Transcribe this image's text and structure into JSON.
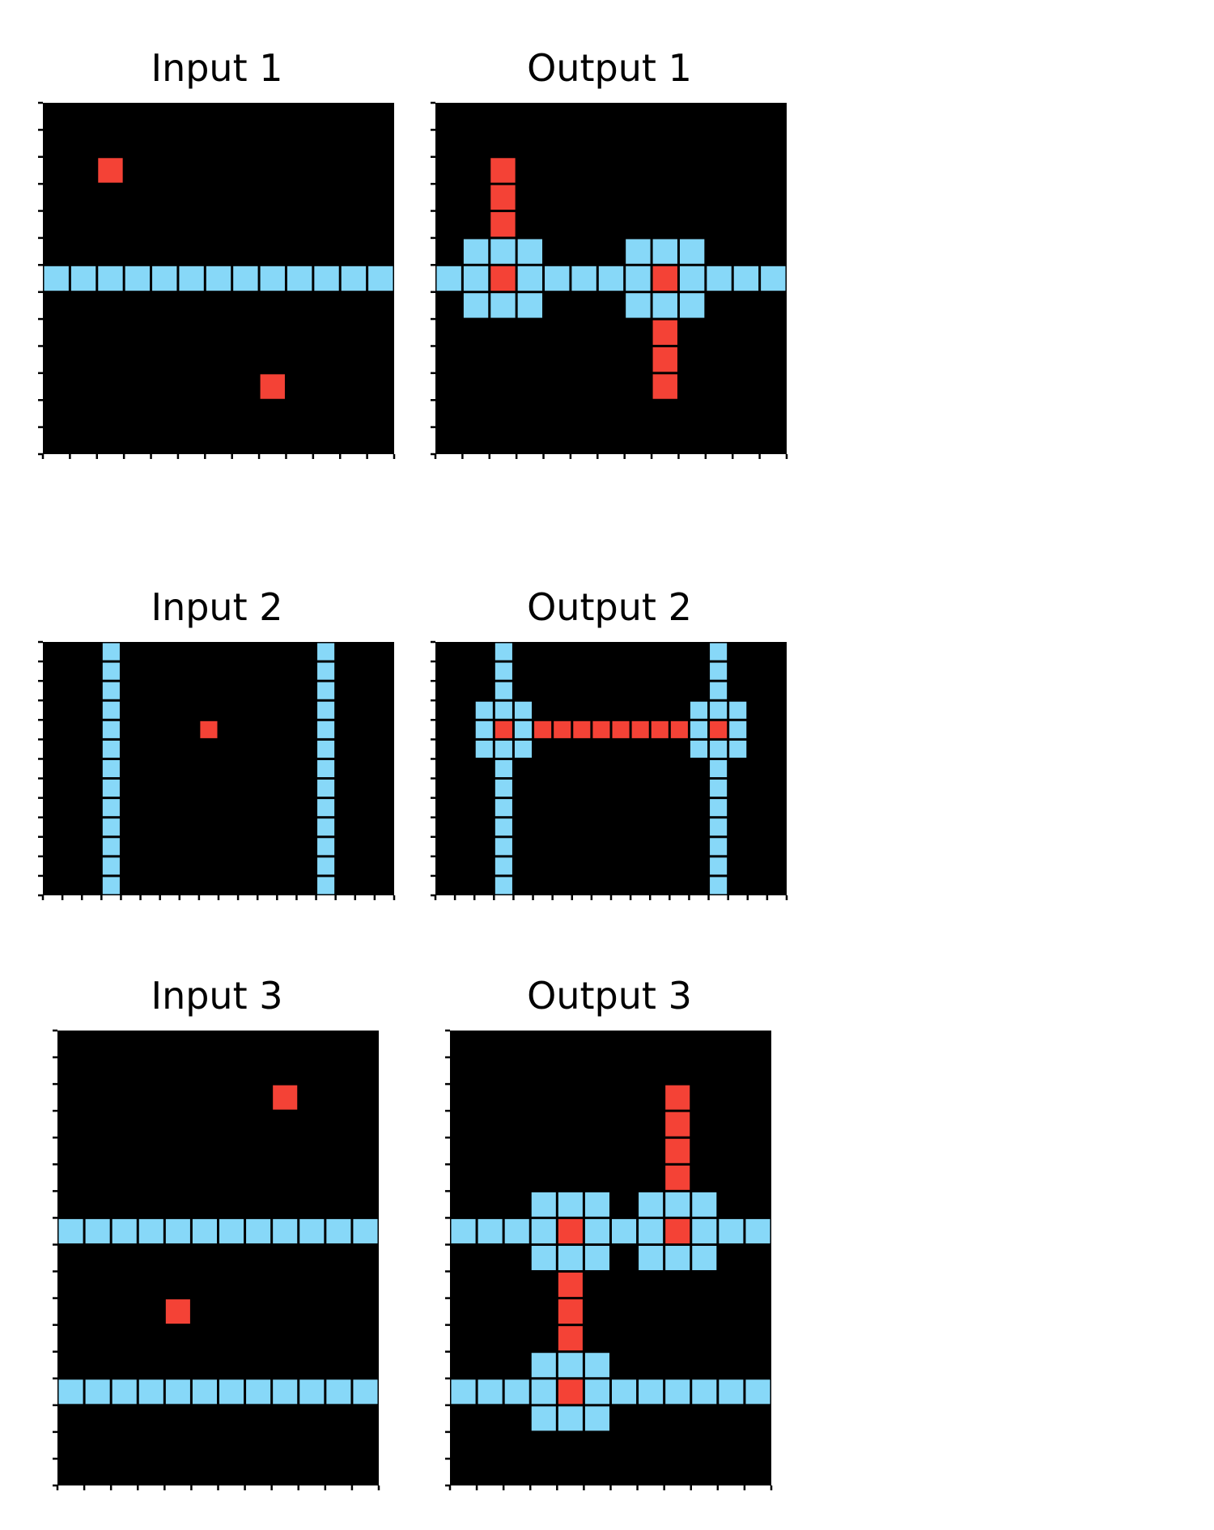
{
  "colors": {
    "background": "#000000",
    "cyan": "#87d8f8",
    "red": "#f44236",
    "grid_line": "#000000"
  },
  "panels": [
    {
      "title": "Input 1",
      "rows": 13,
      "cols": 13,
      "cells": [
        {
          "r": 2,
          "c": 2,
          "color": "red"
        },
        {
          "r": 6,
          "c": 0,
          "color": "cyan"
        },
        {
          "r": 6,
          "c": 1,
          "color": "cyan"
        },
        {
          "r": 6,
          "c": 2,
          "color": "cyan"
        },
        {
          "r": 6,
          "c": 3,
          "color": "cyan"
        },
        {
          "r": 6,
          "c": 4,
          "color": "cyan"
        },
        {
          "r": 6,
          "c": 5,
          "color": "cyan"
        },
        {
          "r": 6,
          "c": 6,
          "color": "cyan"
        },
        {
          "r": 6,
          "c": 7,
          "color": "cyan"
        },
        {
          "r": 6,
          "c": 8,
          "color": "cyan"
        },
        {
          "r": 6,
          "c": 9,
          "color": "cyan"
        },
        {
          "r": 6,
          "c": 10,
          "color": "cyan"
        },
        {
          "r": 6,
          "c": 11,
          "color": "cyan"
        },
        {
          "r": 6,
          "c": 12,
          "color": "cyan"
        },
        {
          "r": 10,
          "c": 8,
          "color": "red"
        }
      ]
    },
    {
      "title": "Output 1",
      "rows": 13,
      "cols": 13,
      "cells": [
        {
          "r": 2,
          "c": 2,
          "color": "red"
        },
        {
          "r": 3,
          "c": 2,
          "color": "red"
        },
        {
          "r": 4,
          "c": 2,
          "color": "red"
        },
        {
          "r": 5,
          "c": 1,
          "color": "cyan"
        },
        {
          "r": 5,
          "c": 2,
          "color": "cyan"
        },
        {
          "r": 5,
          "c": 3,
          "color": "cyan"
        },
        {
          "r": 5,
          "c": 7,
          "color": "cyan"
        },
        {
          "r": 5,
          "c": 8,
          "color": "cyan"
        },
        {
          "r": 5,
          "c": 9,
          "color": "cyan"
        },
        {
          "r": 6,
          "c": 0,
          "color": "cyan"
        },
        {
          "r": 6,
          "c": 1,
          "color": "cyan"
        },
        {
          "r": 6,
          "c": 2,
          "color": "red"
        },
        {
          "r": 6,
          "c": 3,
          "color": "cyan"
        },
        {
          "r": 6,
          "c": 4,
          "color": "cyan"
        },
        {
          "r": 6,
          "c": 5,
          "color": "cyan"
        },
        {
          "r": 6,
          "c": 6,
          "color": "cyan"
        },
        {
          "r": 6,
          "c": 7,
          "color": "cyan"
        },
        {
          "r": 6,
          "c": 8,
          "color": "red"
        },
        {
          "r": 6,
          "c": 9,
          "color": "cyan"
        },
        {
          "r": 6,
          "c": 10,
          "color": "cyan"
        },
        {
          "r": 6,
          "c": 11,
          "color": "cyan"
        },
        {
          "r": 6,
          "c": 12,
          "color": "cyan"
        },
        {
          "r": 7,
          "c": 1,
          "color": "cyan"
        },
        {
          "r": 7,
          "c": 2,
          "color": "cyan"
        },
        {
          "r": 7,
          "c": 3,
          "color": "cyan"
        },
        {
          "r": 7,
          "c": 7,
          "color": "cyan"
        },
        {
          "r": 7,
          "c": 8,
          "color": "cyan"
        },
        {
          "r": 7,
          "c": 9,
          "color": "cyan"
        },
        {
          "r": 8,
          "c": 8,
          "color": "red"
        },
        {
          "r": 9,
          "c": 8,
          "color": "red"
        },
        {
          "r": 10,
          "c": 8,
          "color": "red"
        }
      ]
    },
    {
      "title": "Input 2",
      "rows": 13,
      "cols": 18,
      "cells": [
        {
          "r": 0,
          "c": 3,
          "color": "cyan"
        },
        {
          "r": 1,
          "c": 3,
          "color": "cyan"
        },
        {
          "r": 2,
          "c": 3,
          "color": "cyan"
        },
        {
          "r": 3,
          "c": 3,
          "color": "cyan"
        },
        {
          "r": 4,
          "c": 3,
          "color": "cyan"
        },
        {
          "r": 5,
          "c": 3,
          "color": "cyan"
        },
        {
          "r": 6,
          "c": 3,
          "color": "cyan"
        },
        {
          "r": 7,
          "c": 3,
          "color": "cyan"
        },
        {
          "r": 8,
          "c": 3,
          "color": "cyan"
        },
        {
          "r": 9,
          "c": 3,
          "color": "cyan"
        },
        {
          "r": 10,
          "c": 3,
          "color": "cyan"
        },
        {
          "r": 11,
          "c": 3,
          "color": "cyan"
        },
        {
          "r": 12,
          "c": 3,
          "color": "cyan"
        },
        {
          "r": 0,
          "c": 14,
          "color": "cyan"
        },
        {
          "r": 1,
          "c": 14,
          "color": "cyan"
        },
        {
          "r": 2,
          "c": 14,
          "color": "cyan"
        },
        {
          "r": 3,
          "c": 14,
          "color": "cyan"
        },
        {
          "r": 4,
          "c": 14,
          "color": "cyan"
        },
        {
          "r": 5,
          "c": 14,
          "color": "cyan"
        },
        {
          "r": 6,
          "c": 14,
          "color": "cyan"
        },
        {
          "r": 7,
          "c": 14,
          "color": "cyan"
        },
        {
          "r": 8,
          "c": 14,
          "color": "cyan"
        },
        {
          "r": 9,
          "c": 14,
          "color": "cyan"
        },
        {
          "r": 10,
          "c": 14,
          "color": "cyan"
        },
        {
          "r": 11,
          "c": 14,
          "color": "cyan"
        },
        {
          "r": 12,
          "c": 14,
          "color": "cyan"
        },
        {
          "r": 4,
          "c": 8,
          "color": "red"
        }
      ]
    },
    {
      "title": "Output 2",
      "rows": 13,
      "cols": 18,
      "cells": [
        {
          "r": 0,
          "c": 3,
          "color": "cyan"
        },
        {
          "r": 1,
          "c": 3,
          "color": "cyan"
        },
        {
          "r": 2,
          "c": 3,
          "color": "cyan"
        },
        {
          "r": 3,
          "c": 2,
          "color": "cyan"
        },
        {
          "r": 3,
          "c": 3,
          "color": "cyan"
        },
        {
          "r": 3,
          "c": 4,
          "color": "cyan"
        },
        {
          "r": 4,
          "c": 2,
          "color": "cyan"
        },
        {
          "r": 4,
          "c": 3,
          "color": "red"
        },
        {
          "r": 4,
          "c": 4,
          "color": "cyan"
        },
        {
          "r": 5,
          "c": 2,
          "color": "cyan"
        },
        {
          "r": 5,
          "c": 3,
          "color": "cyan"
        },
        {
          "r": 5,
          "c": 4,
          "color": "cyan"
        },
        {
          "r": 6,
          "c": 3,
          "color": "cyan"
        },
        {
          "r": 7,
          "c": 3,
          "color": "cyan"
        },
        {
          "r": 8,
          "c": 3,
          "color": "cyan"
        },
        {
          "r": 9,
          "c": 3,
          "color": "cyan"
        },
        {
          "r": 10,
          "c": 3,
          "color": "cyan"
        },
        {
          "r": 11,
          "c": 3,
          "color": "cyan"
        },
        {
          "r": 12,
          "c": 3,
          "color": "cyan"
        },
        {
          "r": 4,
          "c": 5,
          "color": "red"
        },
        {
          "r": 4,
          "c": 6,
          "color": "red"
        },
        {
          "r": 4,
          "c": 7,
          "color": "red"
        },
        {
          "r": 4,
          "c": 8,
          "color": "red"
        },
        {
          "r": 4,
          "c": 9,
          "color": "red"
        },
        {
          "r": 4,
          "c": 10,
          "color": "red"
        },
        {
          "r": 4,
          "c": 11,
          "color": "red"
        },
        {
          "r": 4,
          "c": 12,
          "color": "red"
        },
        {
          "r": 0,
          "c": 14,
          "color": "cyan"
        },
        {
          "r": 1,
          "c": 14,
          "color": "cyan"
        },
        {
          "r": 2,
          "c": 14,
          "color": "cyan"
        },
        {
          "r": 3,
          "c": 13,
          "color": "cyan"
        },
        {
          "r": 3,
          "c": 14,
          "color": "cyan"
        },
        {
          "r": 3,
          "c": 15,
          "color": "cyan"
        },
        {
          "r": 4,
          "c": 13,
          "color": "cyan"
        },
        {
          "r": 4,
          "c": 14,
          "color": "red"
        },
        {
          "r": 4,
          "c": 15,
          "color": "cyan"
        },
        {
          "r": 5,
          "c": 13,
          "color": "cyan"
        },
        {
          "r": 5,
          "c": 14,
          "color": "cyan"
        },
        {
          "r": 5,
          "c": 15,
          "color": "cyan"
        },
        {
          "r": 6,
          "c": 14,
          "color": "cyan"
        },
        {
          "r": 7,
          "c": 14,
          "color": "cyan"
        },
        {
          "r": 8,
          "c": 14,
          "color": "cyan"
        },
        {
          "r": 9,
          "c": 14,
          "color": "cyan"
        },
        {
          "r": 10,
          "c": 14,
          "color": "cyan"
        },
        {
          "r": 11,
          "c": 14,
          "color": "cyan"
        },
        {
          "r": 12,
          "c": 14,
          "color": "cyan"
        }
      ]
    },
    {
      "title": "Input 3",
      "rows": 17,
      "cols": 12,
      "cells": [
        {
          "r": 2,
          "c": 8,
          "color": "red"
        },
        {
          "r": 7,
          "c": 0,
          "color": "cyan"
        },
        {
          "r": 7,
          "c": 1,
          "color": "cyan"
        },
        {
          "r": 7,
          "c": 2,
          "color": "cyan"
        },
        {
          "r": 7,
          "c": 3,
          "color": "cyan"
        },
        {
          "r": 7,
          "c": 4,
          "color": "cyan"
        },
        {
          "r": 7,
          "c": 5,
          "color": "cyan"
        },
        {
          "r": 7,
          "c": 6,
          "color": "cyan"
        },
        {
          "r": 7,
          "c": 7,
          "color": "cyan"
        },
        {
          "r": 7,
          "c": 8,
          "color": "cyan"
        },
        {
          "r": 7,
          "c": 9,
          "color": "cyan"
        },
        {
          "r": 7,
          "c": 10,
          "color": "cyan"
        },
        {
          "r": 7,
          "c": 11,
          "color": "cyan"
        },
        {
          "r": 10,
          "c": 4,
          "color": "red"
        },
        {
          "r": 13,
          "c": 0,
          "color": "cyan"
        },
        {
          "r": 13,
          "c": 1,
          "color": "cyan"
        },
        {
          "r": 13,
          "c": 2,
          "color": "cyan"
        },
        {
          "r": 13,
          "c": 3,
          "color": "cyan"
        },
        {
          "r": 13,
          "c": 4,
          "color": "cyan"
        },
        {
          "r": 13,
          "c": 5,
          "color": "cyan"
        },
        {
          "r": 13,
          "c": 6,
          "color": "cyan"
        },
        {
          "r": 13,
          "c": 7,
          "color": "cyan"
        },
        {
          "r": 13,
          "c": 8,
          "color": "cyan"
        },
        {
          "r": 13,
          "c": 9,
          "color": "cyan"
        },
        {
          "r": 13,
          "c": 10,
          "color": "cyan"
        },
        {
          "r": 13,
          "c": 11,
          "color": "cyan"
        }
      ]
    },
    {
      "title": "Output 3",
      "rows": 17,
      "cols": 12,
      "cells": [
        {
          "r": 2,
          "c": 8,
          "color": "red"
        },
        {
          "r": 3,
          "c": 8,
          "color": "red"
        },
        {
          "r": 4,
          "c": 8,
          "color": "red"
        },
        {
          "r": 5,
          "c": 8,
          "color": "red"
        },
        {
          "r": 6,
          "c": 3,
          "color": "cyan"
        },
        {
          "r": 6,
          "c": 4,
          "color": "cyan"
        },
        {
          "r": 6,
          "c": 5,
          "color": "cyan"
        },
        {
          "r": 6,
          "c": 7,
          "color": "cyan"
        },
        {
          "r": 6,
          "c": 8,
          "color": "cyan"
        },
        {
          "r": 6,
          "c": 9,
          "color": "cyan"
        },
        {
          "r": 7,
          "c": 0,
          "color": "cyan"
        },
        {
          "r": 7,
          "c": 1,
          "color": "cyan"
        },
        {
          "r": 7,
          "c": 2,
          "color": "cyan"
        },
        {
          "r": 7,
          "c": 3,
          "color": "cyan"
        },
        {
          "r": 7,
          "c": 4,
          "color": "red"
        },
        {
          "r": 7,
          "c": 5,
          "color": "cyan"
        },
        {
          "r": 7,
          "c": 6,
          "color": "cyan"
        },
        {
          "r": 7,
          "c": 7,
          "color": "cyan"
        },
        {
          "r": 7,
          "c": 8,
          "color": "red"
        },
        {
          "r": 7,
          "c": 9,
          "color": "cyan"
        },
        {
          "r": 7,
          "c": 10,
          "color": "cyan"
        },
        {
          "r": 7,
          "c": 11,
          "color": "cyan"
        },
        {
          "r": 8,
          "c": 3,
          "color": "cyan"
        },
        {
          "r": 8,
          "c": 4,
          "color": "cyan"
        },
        {
          "r": 8,
          "c": 5,
          "color": "cyan"
        },
        {
          "r": 8,
          "c": 7,
          "color": "cyan"
        },
        {
          "r": 8,
          "c": 8,
          "color": "cyan"
        },
        {
          "r": 8,
          "c": 9,
          "color": "cyan"
        },
        {
          "r": 9,
          "c": 4,
          "color": "red"
        },
        {
          "r": 10,
          "c": 4,
          "color": "red"
        },
        {
          "r": 11,
          "c": 4,
          "color": "red"
        },
        {
          "r": 12,
          "c": 3,
          "color": "cyan"
        },
        {
          "r": 12,
          "c": 4,
          "color": "cyan"
        },
        {
          "r": 12,
          "c": 5,
          "color": "cyan"
        },
        {
          "r": 13,
          "c": 0,
          "color": "cyan"
        },
        {
          "r": 13,
          "c": 1,
          "color": "cyan"
        },
        {
          "r": 13,
          "c": 2,
          "color": "cyan"
        },
        {
          "r": 13,
          "c": 3,
          "color": "cyan"
        },
        {
          "r": 13,
          "c": 4,
          "color": "red"
        },
        {
          "r": 13,
          "c": 5,
          "color": "cyan"
        },
        {
          "r": 13,
          "c": 6,
          "color": "cyan"
        },
        {
          "r": 13,
          "c": 7,
          "color": "cyan"
        },
        {
          "r": 13,
          "c": 8,
          "color": "cyan"
        },
        {
          "r": 13,
          "c": 9,
          "color": "cyan"
        },
        {
          "r": 13,
          "c": 10,
          "color": "cyan"
        },
        {
          "r": 13,
          "c": 11,
          "color": "cyan"
        },
        {
          "r": 14,
          "c": 3,
          "color": "cyan"
        },
        {
          "r": 14,
          "c": 4,
          "color": "cyan"
        },
        {
          "r": 14,
          "c": 5,
          "color": "cyan"
        }
      ]
    }
  ]
}
